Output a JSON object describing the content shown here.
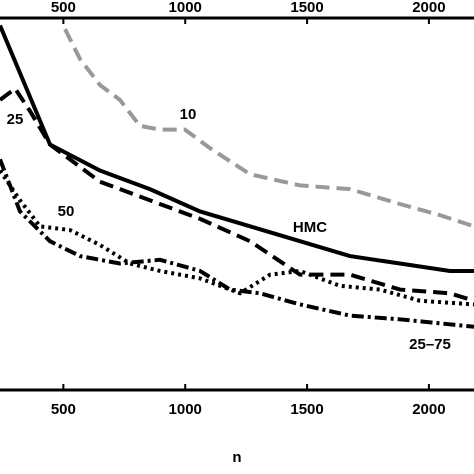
{
  "chart_data": {
    "type": "line",
    "xlabel": "n",
    "xlim": [
      240,
      2185
    ],
    "xticks": [
      500,
      1000,
      1500,
      2000
    ],
    "ylim": [
      0,
      100
    ],
    "series": [
      {
        "name": "HMC",
        "color": "#000000",
        "dash": "solid",
        "x": [
          240,
          445,
          650,
          855,
          1061,
          1266,
          1471,
          1676,
          1881,
          2086,
          2185
        ],
        "values": [
          98,
          66,
          59,
          54,
          48,
          44,
          40,
          36,
          34,
          32,
          32
        ]
      },
      {
        "name": "25",
        "color": "#000000",
        "dash": "dashed",
        "x": [
          240,
          302,
          363,
          445,
          568,
          650,
          855,
          1061,
          1266,
          1471,
          1676,
          1881,
          2086,
          2185
        ],
        "values": [
          78,
          81,
          75,
          66,
          60,
          56,
          51,
          46,
          40,
          31,
          31,
          27,
          26,
          24
        ]
      },
      {
        "name": "10",
        "color": "#999999",
        "dash": "dashed",
        "x": [
          507,
          568,
          650,
          732,
          814,
          897,
          999,
          1102,
          1266,
          1471,
          1676,
          1881,
          2045,
          2185
        ],
        "values": [
          97,
          89,
          82,
          78,
          71,
          70,
          70,
          65,
          58,
          55,
          54,
          50,
          47,
          44
        ]
      },
      {
        "name": "50",
        "color": "#000000",
        "dash": "dotted",
        "x": [
          240,
          322,
          404,
          527,
          650,
          773,
          897,
          1061,
          1225,
          1348,
          1471,
          1635,
          1799,
          1963,
          2185
        ],
        "values": [
          59,
          51,
          44,
          43,
          39,
          34,
          32,
          30,
          26,
          31,
          32,
          28,
          27,
          24,
          23
        ]
      },
      {
        "name": "25–75",
        "color": "#000000",
        "dash": "dashdot",
        "x": [
          240,
          322,
          445,
          568,
          732,
          897,
          1061,
          1184,
          1307,
          1471,
          1676,
          1881,
          2185
        ],
        "values": [
          62,
          48,
          40,
          36,
          34,
          35,
          32,
          27,
          26,
          23,
          20,
          19,
          17
        ]
      }
    ]
  }
}
